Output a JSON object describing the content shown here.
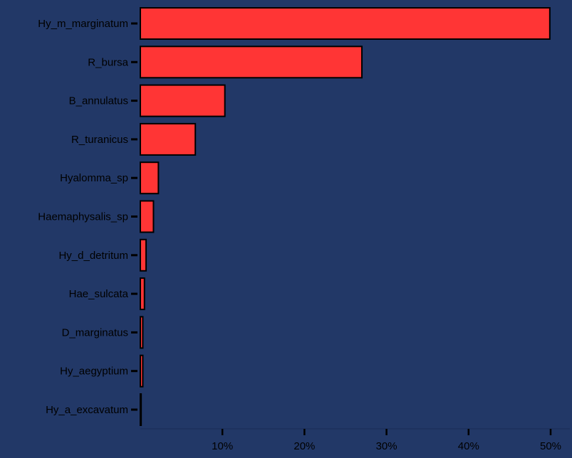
{
  "colors": {
    "background": "#223867",
    "bar_fill": "#ff3535",
    "bar_stroke": "#000000",
    "tick": "#000000",
    "label": "#000000",
    "gridline": "#1a2d55"
  },
  "chart_data": {
    "type": "bar",
    "orientation": "horizontal",
    "title": "",
    "xlabel": "",
    "ylabel": "",
    "categories": [
      "Hy_m_marginatum",
      "R_bursa",
      "B_annulatus",
      "R_turanicus",
      "Hyalomma_sp",
      "Haemaphysalis_sp",
      "Hy_d_detritum",
      "Hae_sulcata",
      "D_marginatus",
      "Hy_aegyptium",
      "Hy_a_excavatum"
    ],
    "values": [
      49.9,
      27.0,
      10.3,
      6.7,
      2.2,
      1.6,
      0.7,
      0.5,
      0.3,
      0.3,
      0.1
    ],
    "xlim": [
      0,
      50
    ],
    "x_ticks": [
      10,
      20,
      30,
      40,
      50
    ],
    "x_tick_labels": [
      "10%",
      "20%",
      "30%",
      "40%",
      "50%"
    ],
    "grid": false
  }
}
